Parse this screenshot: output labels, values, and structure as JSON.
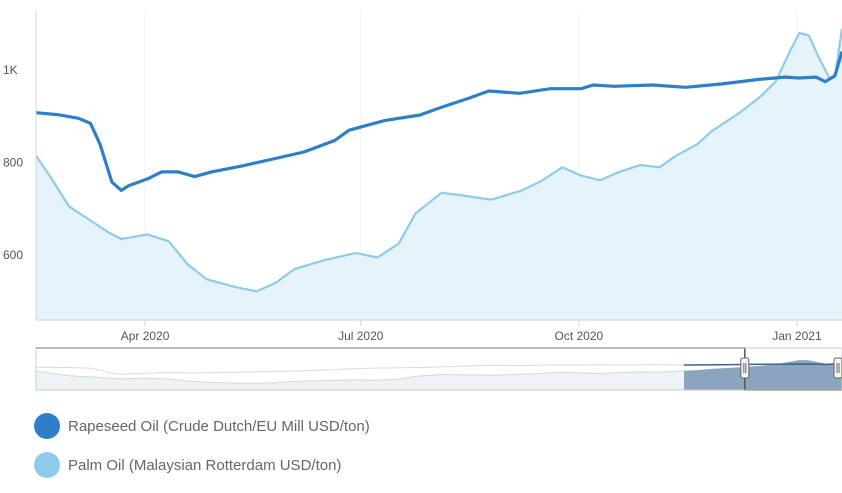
{
  "chart_data": {
    "type": "area",
    "x_axis": {
      "ticks": [
        "Apr 2020",
        "Jul 2020",
        "Oct 2020",
        "Jan 2021"
      ],
      "range": [
        "2020-02-15",
        "2021-01-20"
      ]
    },
    "y_axis": {
      "ticks": [
        {
          "value": 600,
          "label": "600"
        },
        {
          "value": 800,
          "label": "800"
        },
        {
          "value": 1000,
          "label": "1K"
        }
      ],
      "range": [
        460,
        1130
      ]
    },
    "grid": "vertical",
    "legend": "bottom-left",
    "series": [
      {
        "name": "Rapeseed Oil (Crude Dutch/EU Mill USD/ton)",
        "color": "#2f7fc8",
        "fill": false,
        "points": [
          [
            "2020-02-15",
            908
          ],
          [
            "2020-02-24",
            904
          ],
          [
            "2020-03-04",
            896
          ],
          [
            "2020-03-09",
            885
          ],
          [
            "2020-03-13",
            840
          ],
          [
            "2020-03-18",
            758
          ],
          [
            "2020-03-22",
            740
          ],
          [
            "2020-03-25",
            750
          ],
          [
            "2020-04-02",
            765
          ],
          [
            "2020-04-08",
            780
          ],
          [
            "2020-04-15",
            780
          ],
          [
            "2020-04-22",
            770
          ],
          [
            "2020-04-29",
            780
          ],
          [
            "2020-05-12",
            793
          ],
          [
            "2020-05-25",
            808
          ],
          [
            "2020-06-07",
            823
          ],
          [
            "2020-06-20",
            848
          ],
          [
            "2020-06-26",
            870
          ],
          [
            "2020-07-03",
            880
          ],
          [
            "2020-07-11",
            891
          ],
          [
            "2020-07-26",
            903
          ],
          [
            "2020-08-03",
            918
          ],
          [
            "2020-08-16",
            940
          ],
          [
            "2020-08-24",
            955
          ],
          [
            "2020-09-06",
            950
          ],
          [
            "2020-09-19",
            960
          ],
          [
            "2020-10-02",
            960
          ],
          [
            "2020-10-07",
            968
          ],
          [
            "2020-10-16",
            965
          ],
          [
            "2020-11-01",
            968
          ],
          [
            "2020-11-15",
            963
          ],
          [
            "2020-11-30",
            970
          ],
          [
            "2020-12-16",
            980
          ],
          [
            "2020-12-27",
            985
          ],
          [
            "2021-01-02",
            983
          ],
          [
            "2021-01-09",
            985
          ],
          [
            "2021-01-13",
            975
          ],
          [
            "2021-01-17",
            988
          ],
          [
            "2021-01-20",
            1040
          ]
        ]
      },
      {
        "name": "Palm Oil (Malaysian Rotterdam USD/ton)",
        "color": "#8ecbea",
        "fill": true,
        "points": [
          [
            "2020-02-15",
            815
          ],
          [
            "2020-02-21",
            770
          ],
          [
            "2020-02-29",
            705
          ],
          [
            "2020-03-09",
            675
          ],
          [
            "2020-03-17",
            648
          ],
          [
            "2020-03-22",
            635
          ],
          [
            "2020-04-02",
            645
          ],
          [
            "2020-04-11",
            630
          ],
          [
            "2020-04-19",
            580
          ],
          [
            "2020-04-27",
            548
          ],
          [
            "2020-05-10",
            530
          ],
          [
            "2020-05-18",
            522
          ],
          [
            "2020-05-26",
            540
          ],
          [
            "2020-06-03",
            570
          ],
          [
            "2020-06-16",
            590
          ],
          [
            "2020-06-29",
            605
          ],
          [
            "2020-07-08",
            595
          ],
          [
            "2020-07-17",
            625
          ],
          [
            "2020-07-24",
            690
          ],
          [
            "2020-08-04",
            735
          ],
          [
            "2020-08-12",
            730
          ],
          [
            "2020-08-25",
            720
          ],
          [
            "2020-09-07",
            740
          ],
          [
            "2020-09-15",
            760
          ],
          [
            "2020-09-24",
            790
          ],
          [
            "2020-10-02",
            772
          ],
          [
            "2020-10-10",
            762
          ],
          [
            "2020-10-18",
            780
          ],
          [
            "2020-10-27",
            795
          ],
          [
            "2020-11-04",
            790
          ],
          [
            "2020-11-11",
            815
          ],
          [
            "2020-11-20",
            840
          ],
          [
            "2020-11-26",
            868
          ],
          [
            "2020-12-07",
            905
          ],
          [
            "2020-12-16",
            940
          ],
          [
            "2020-12-23",
            975
          ],
          [
            "2020-12-29",
            1040
          ],
          [
            "2021-01-02",
            1080
          ],
          [
            "2021-01-06",
            1075
          ],
          [
            "2021-01-10",
            1030
          ],
          [
            "2021-01-15",
            980
          ],
          [
            "2021-01-17",
            985
          ],
          [
            "2021-01-20",
            1090
          ]
        ]
      }
    ]
  },
  "navigator": {
    "handle_left": "2020-12-10",
    "handle_right": "2021-01-20"
  }
}
